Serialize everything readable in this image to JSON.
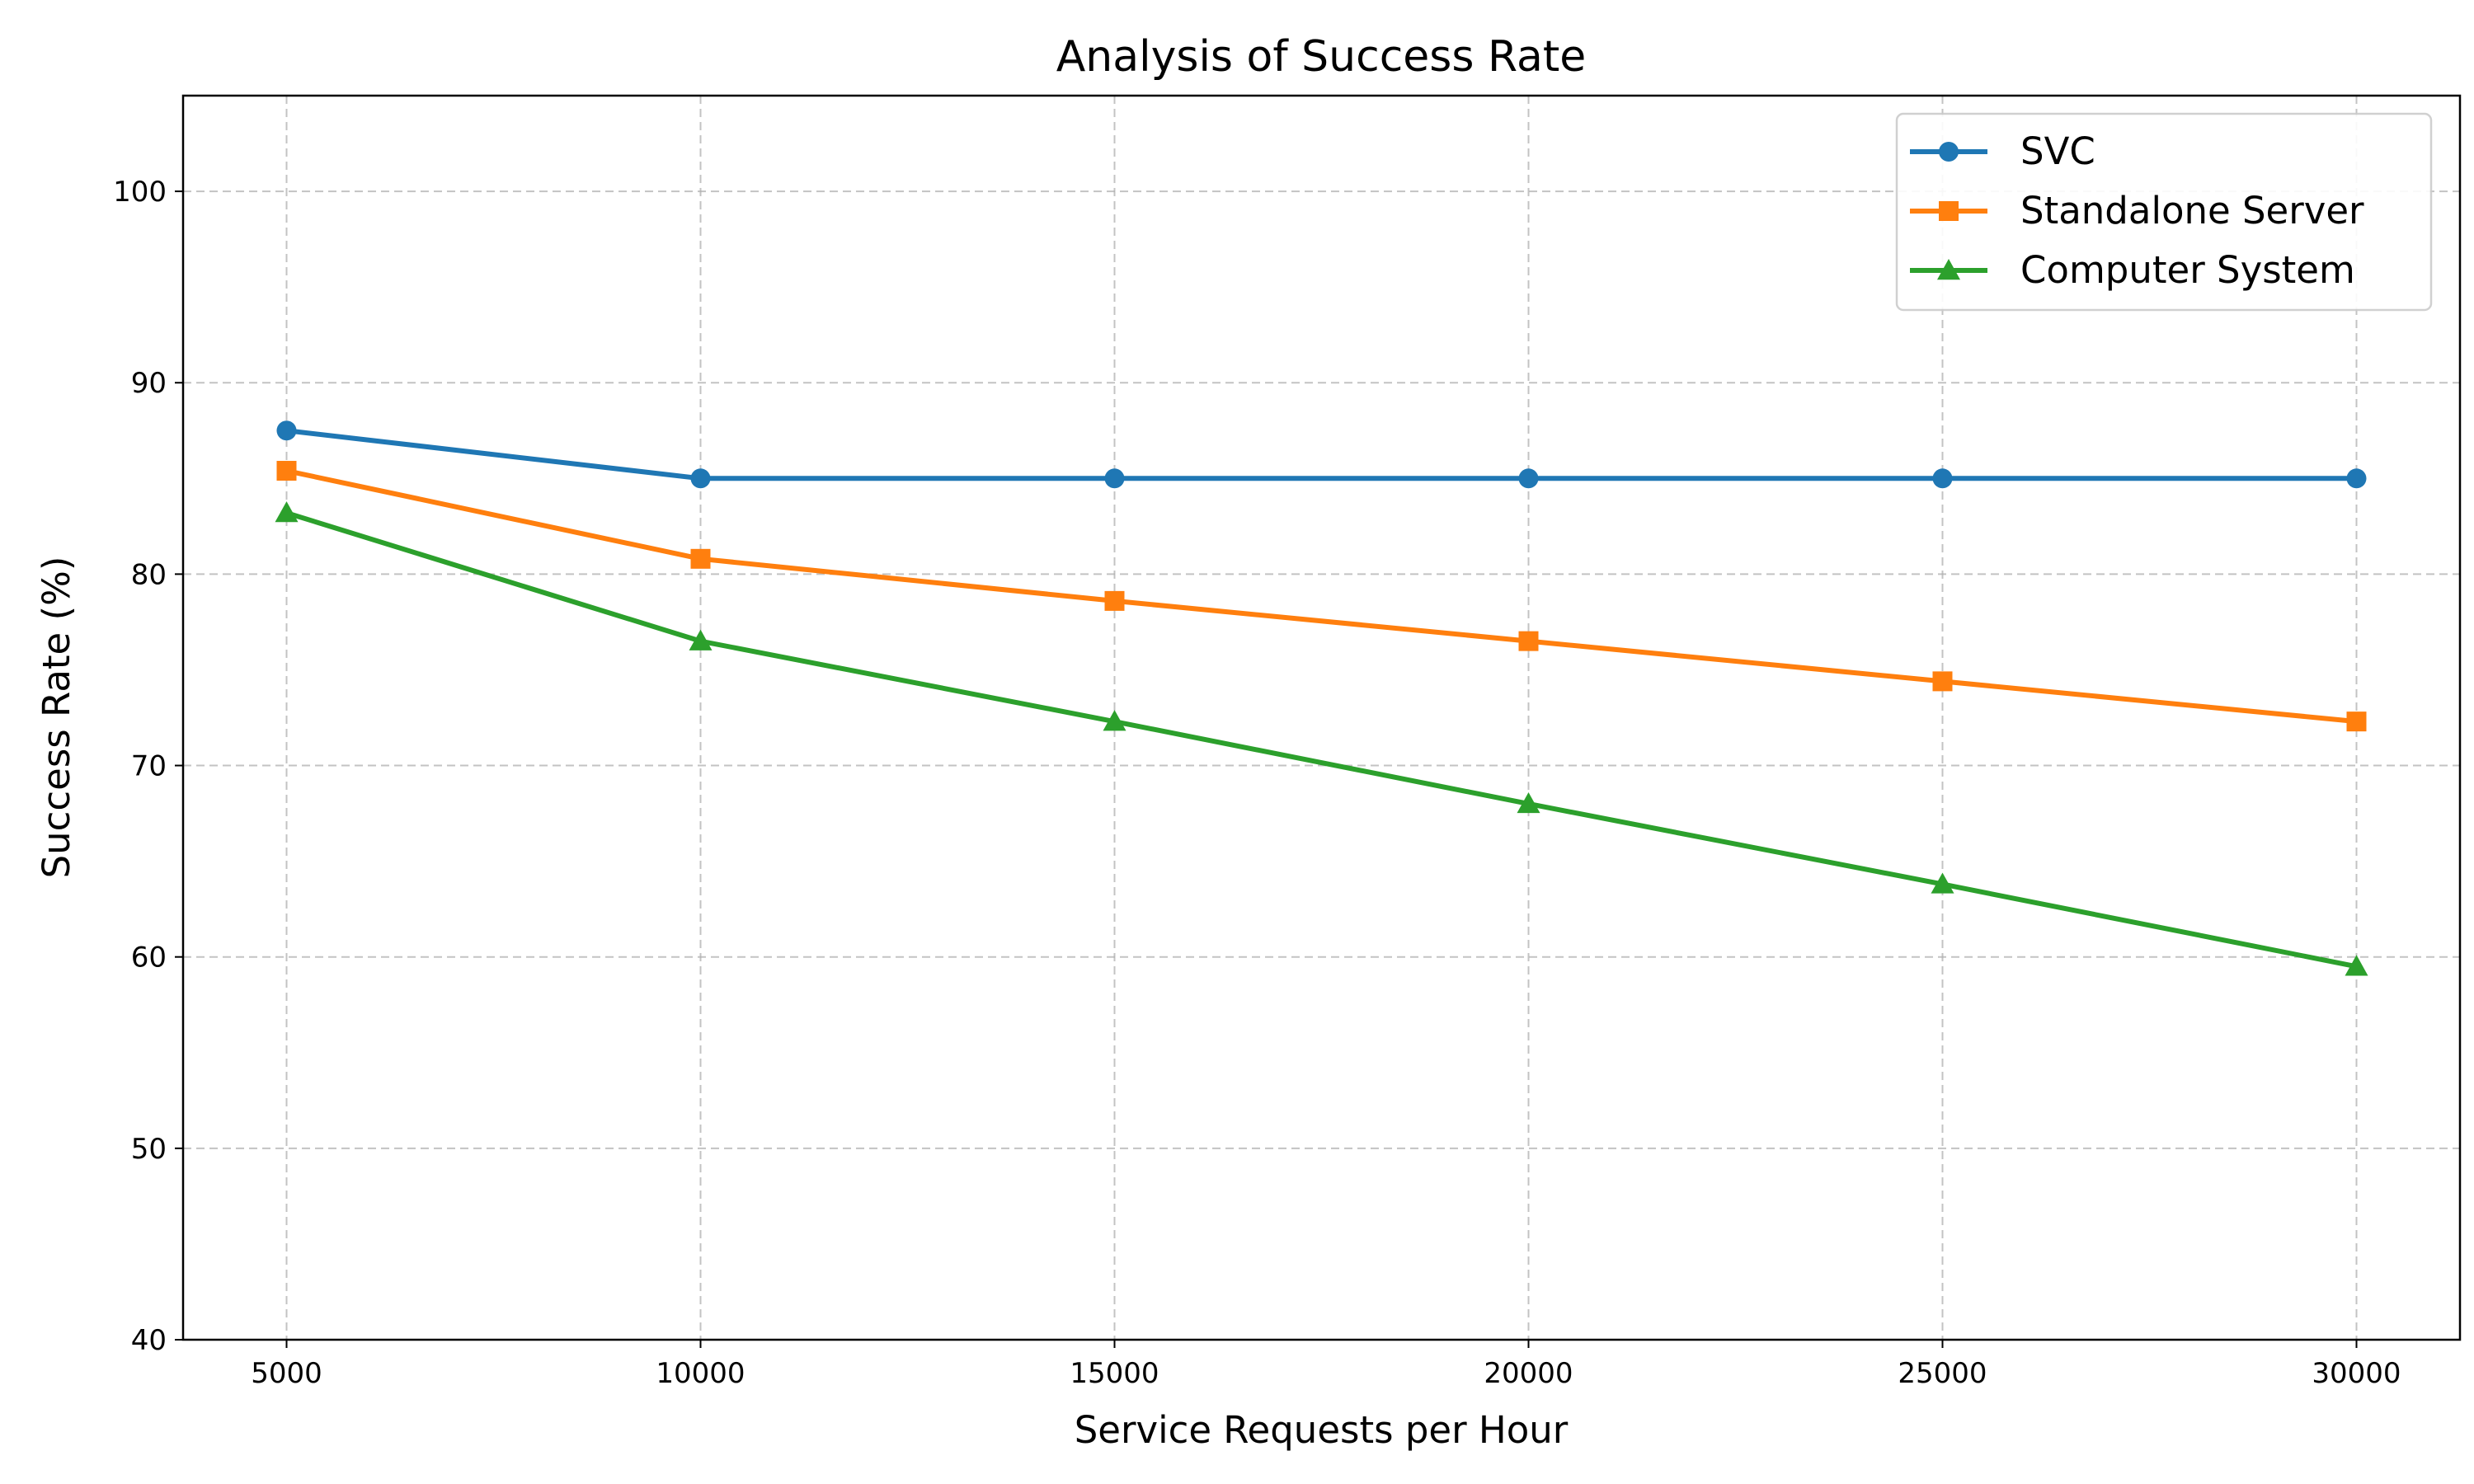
{
  "chart_data": {
    "type": "line",
    "title": "Analysis of Success Rate",
    "xlabel": "Service Requests per Hour",
    "ylabel": "Success Rate (%)",
    "x": [
      5000,
      10000,
      15000,
      20000,
      25000,
      30000
    ],
    "xticks": [
      5000,
      10000,
      15000,
      20000,
      25000,
      30000
    ],
    "xlim": [
      3750,
      31250
    ],
    "yticks": [
      40,
      50,
      60,
      70,
      80,
      90,
      100
    ],
    "ylim": [
      40,
      105
    ],
    "grid": true,
    "legend_position": "top-right",
    "series": [
      {
        "name": "SVC",
        "color": "#1f77b4",
        "marker": "circle",
        "values": [
          87.5,
          85.0,
          85.0,
          85.0,
          85.0,
          85.0
        ]
      },
      {
        "name": "Standalone Server",
        "color": "#ff7f0e",
        "marker": "square",
        "values": [
          85.4,
          80.8,
          78.6,
          76.5,
          74.4,
          72.3
        ]
      },
      {
        "name": "Computer System",
        "color": "#2ca02c",
        "marker": "triangle",
        "values": [
          83.2,
          76.5,
          72.3,
          68.0,
          63.8,
          59.5
        ]
      }
    ]
  }
}
